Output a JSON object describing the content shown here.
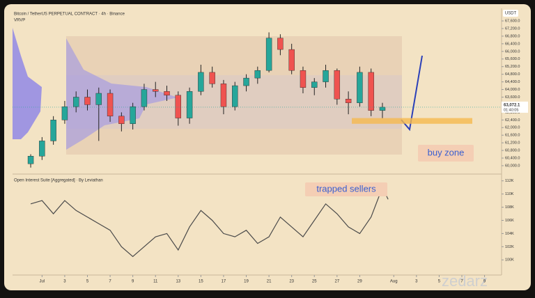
{
  "chart_data": [
    {
      "type": "candlestick",
      "title": "Bitcoin / TetherUS PERPETUAL CONTRACT · 4h · Binance",
      "indicator": "VRVP",
      "currency": "USDT",
      "x": [
        0,
        1,
        2,
        3,
        4,
        5,
        6,
        7,
        8,
        9,
        10,
        11,
        12,
        13,
        14,
        15,
        16,
        17,
        18,
        19,
        20,
        21,
        22,
        23,
        24,
        25,
        26,
        27,
        28,
        29,
        30,
        31
      ],
      "open": [
        60100,
        60500,
        61300,
        62400,
        63100,
        63600,
        63200,
        63800,
        62600,
        62200,
        63100,
        64000,
        63900,
        63700,
        62500,
        63900,
        64900,
        64300,
        63100,
        64200,
        64600,
        65000,
        66700,
        66100,
        65000,
        64100,
        64400,
        65000,
        63500,
        63300,
        64900,
        62900
      ],
      "high": [
        60600,
        61500,
        62600,
        63400,
        63900,
        64000,
        64100,
        64000,
        62800,
        63300,
        64300,
        64400,
        64200,
        63900,
        64100,
        65300,
        65200,
        64500,
        64400,
        64800,
        65200,
        67000,
        66900,
        66400,
        65200,
        64600,
        65300,
        65100,
        63900,
        65200,
        65100,
        63300
      ],
      "low": [
        59900,
        60300,
        61100,
        62200,
        62800,
        62900,
        61300,
        62300,
        61800,
        61900,
        62900,
        63600,
        63400,
        62100,
        62200,
        63700,
        64100,
        62700,
        62900,
        63900,
        64300,
        64900,
        65800,
        64800,
        63800,
        63700,
        64100,
        63200,
        62700,
        63100,
        62600,
        62500
      ],
      "close": [
        60500,
        61300,
        62400,
        63100,
        63600,
        63200,
        63800,
        62600,
        62200,
        63100,
        64000,
        63900,
        63700,
        62500,
        63900,
        64900,
        64300,
        63100,
        64200,
        64600,
        65000,
        66700,
        66100,
        65000,
        64100,
        64400,
        65000,
        63500,
        63300,
        64900,
        62900,
        63072.1
      ],
      "up_color": "#26a69a",
      "down_color": "#ef5350",
      "last_price": {
        "value": 63072.1,
        "label": "63,072.1"
      },
      "countdown": "01:40:05",
      "buy_zone": {
        "label": "buy zone",
        "range": [
          62200,
          62500
        ]
      },
      "xlim": [
        -1.6,
        41.5
      ],
      "ylim": [
        59560,
        68150
      ],
      "yticks": [
        {
          "value": 60000,
          "label": "60,000.0"
        },
        {
          "value": 60400,
          "label": "60,400.0"
        },
        {
          "value": 60800,
          "label": "60,800.0"
        },
        {
          "value": 61200,
          "label": "61,200.0"
        },
        {
          "value": 61600,
          "label": "61,600.0"
        },
        {
          "value": 62000,
          "label": "62,000.0"
        },
        {
          "value": 62400,
          "label": "62,400.0"
        },
        {
          "value": 62800,
          "label": "62,800.0"
        },
        {
          "value": 63200,
          "label": "63,200.0"
        },
        {
          "value": 63600,
          "label": "63,600.0"
        },
        {
          "value": 64000,
          "label": "64,000.0"
        },
        {
          "value": 64400,
          "label": "64,400.0"
        },
        {
          "value": 64800,
          "label": "64,800.0"
        },
        {
          "value": 65200,
          "label": "65,200.0"
        },
        {
          "value": 65600,
          "label": "65,600.0"
        },
        {
          "value": 66000,
          "label": "66,000.0"
        },
        {
          "value": 66400,
          "label": "66,400.0"
        },
        {
          "value": 66800,
          "label": "66,800.0"
        },
        {
          "value": 67200,
          "label": "67,200.0"
        },
        {
          "value": 67600,
          "label": "67,600.0"
        }
      ]
    },
    {
      "type": "line",
      "title": "Open Interest Suite [Aggregated] · By Leviathan",
      "annotation": "trapped sellers",
      "color": "#4a4a4a",
      "x": [
        0,
        1,
        2,
        3,
        4,
        5,
        6,
        7,
        8,
        9,
        10,
        11,
        12,
        13,
        14,
        15,
        16,
        17,
        18,
        19,
        20,
        21,
        22,
        23,
        24,
        25,
        26,
        27,
        28,
        29,
        30,
        31,
        31.5
      ],
      "values": [
        108.5,
        109,
        107,
        109,
        107.5,
        106.5,
        105.5,
        104.5,
        102,
        100.5,
        102,
        103.5,
        104,
        101.5,
        105,
        107.5,
        106,
        104,
        103.5,
        104.5,
        102.5,
        103.5,
        106.5,
        105,
        103.5,
        106,
        108.5,
        107,
        105,
        104,
        106.5,
        111,
        109.2
      ],
      "xlim": [
        -1.6,
        41.5
      ],
      "ylim": [
        97.7,
        112.5
      ],
      "yticks": [
        {
          "value": 100,
          "label": "100K"
        },
        {
          "value": 102,
          "label": "102K"
        },
        {
          "value": 104,
          "label": "104K"
        },
        {
          "value": 106,
          "label": "106K"
        },
        {
          "value": 108,
          "label": "108K"
        },
        {
          "value": 110,
          "label": "110K"
        },
        {
          "value": 112,
          "label": "112K"
        }
      ],
      "xticks": [
        {
          "value": 1,
          "label": "Jul"
        },
        3,
        5,
        7,
        9,
        11,
        13,
        15,
        17,
        19,
        21,
        23,
        25,
        27,
        29,
        {
          "value": 32,
          "label": "Aug"
        },
        {
          "value": 34,
          "label": "3"
        },
        {
          "value": 36,
          "label": "5"
        },
        {
          "value": 38,
          "label": "7"
        },
        {
          "value": 40,
          "label": "9"
        }
      ]
    }
  ],
  "watermark": "zedarz"
}
